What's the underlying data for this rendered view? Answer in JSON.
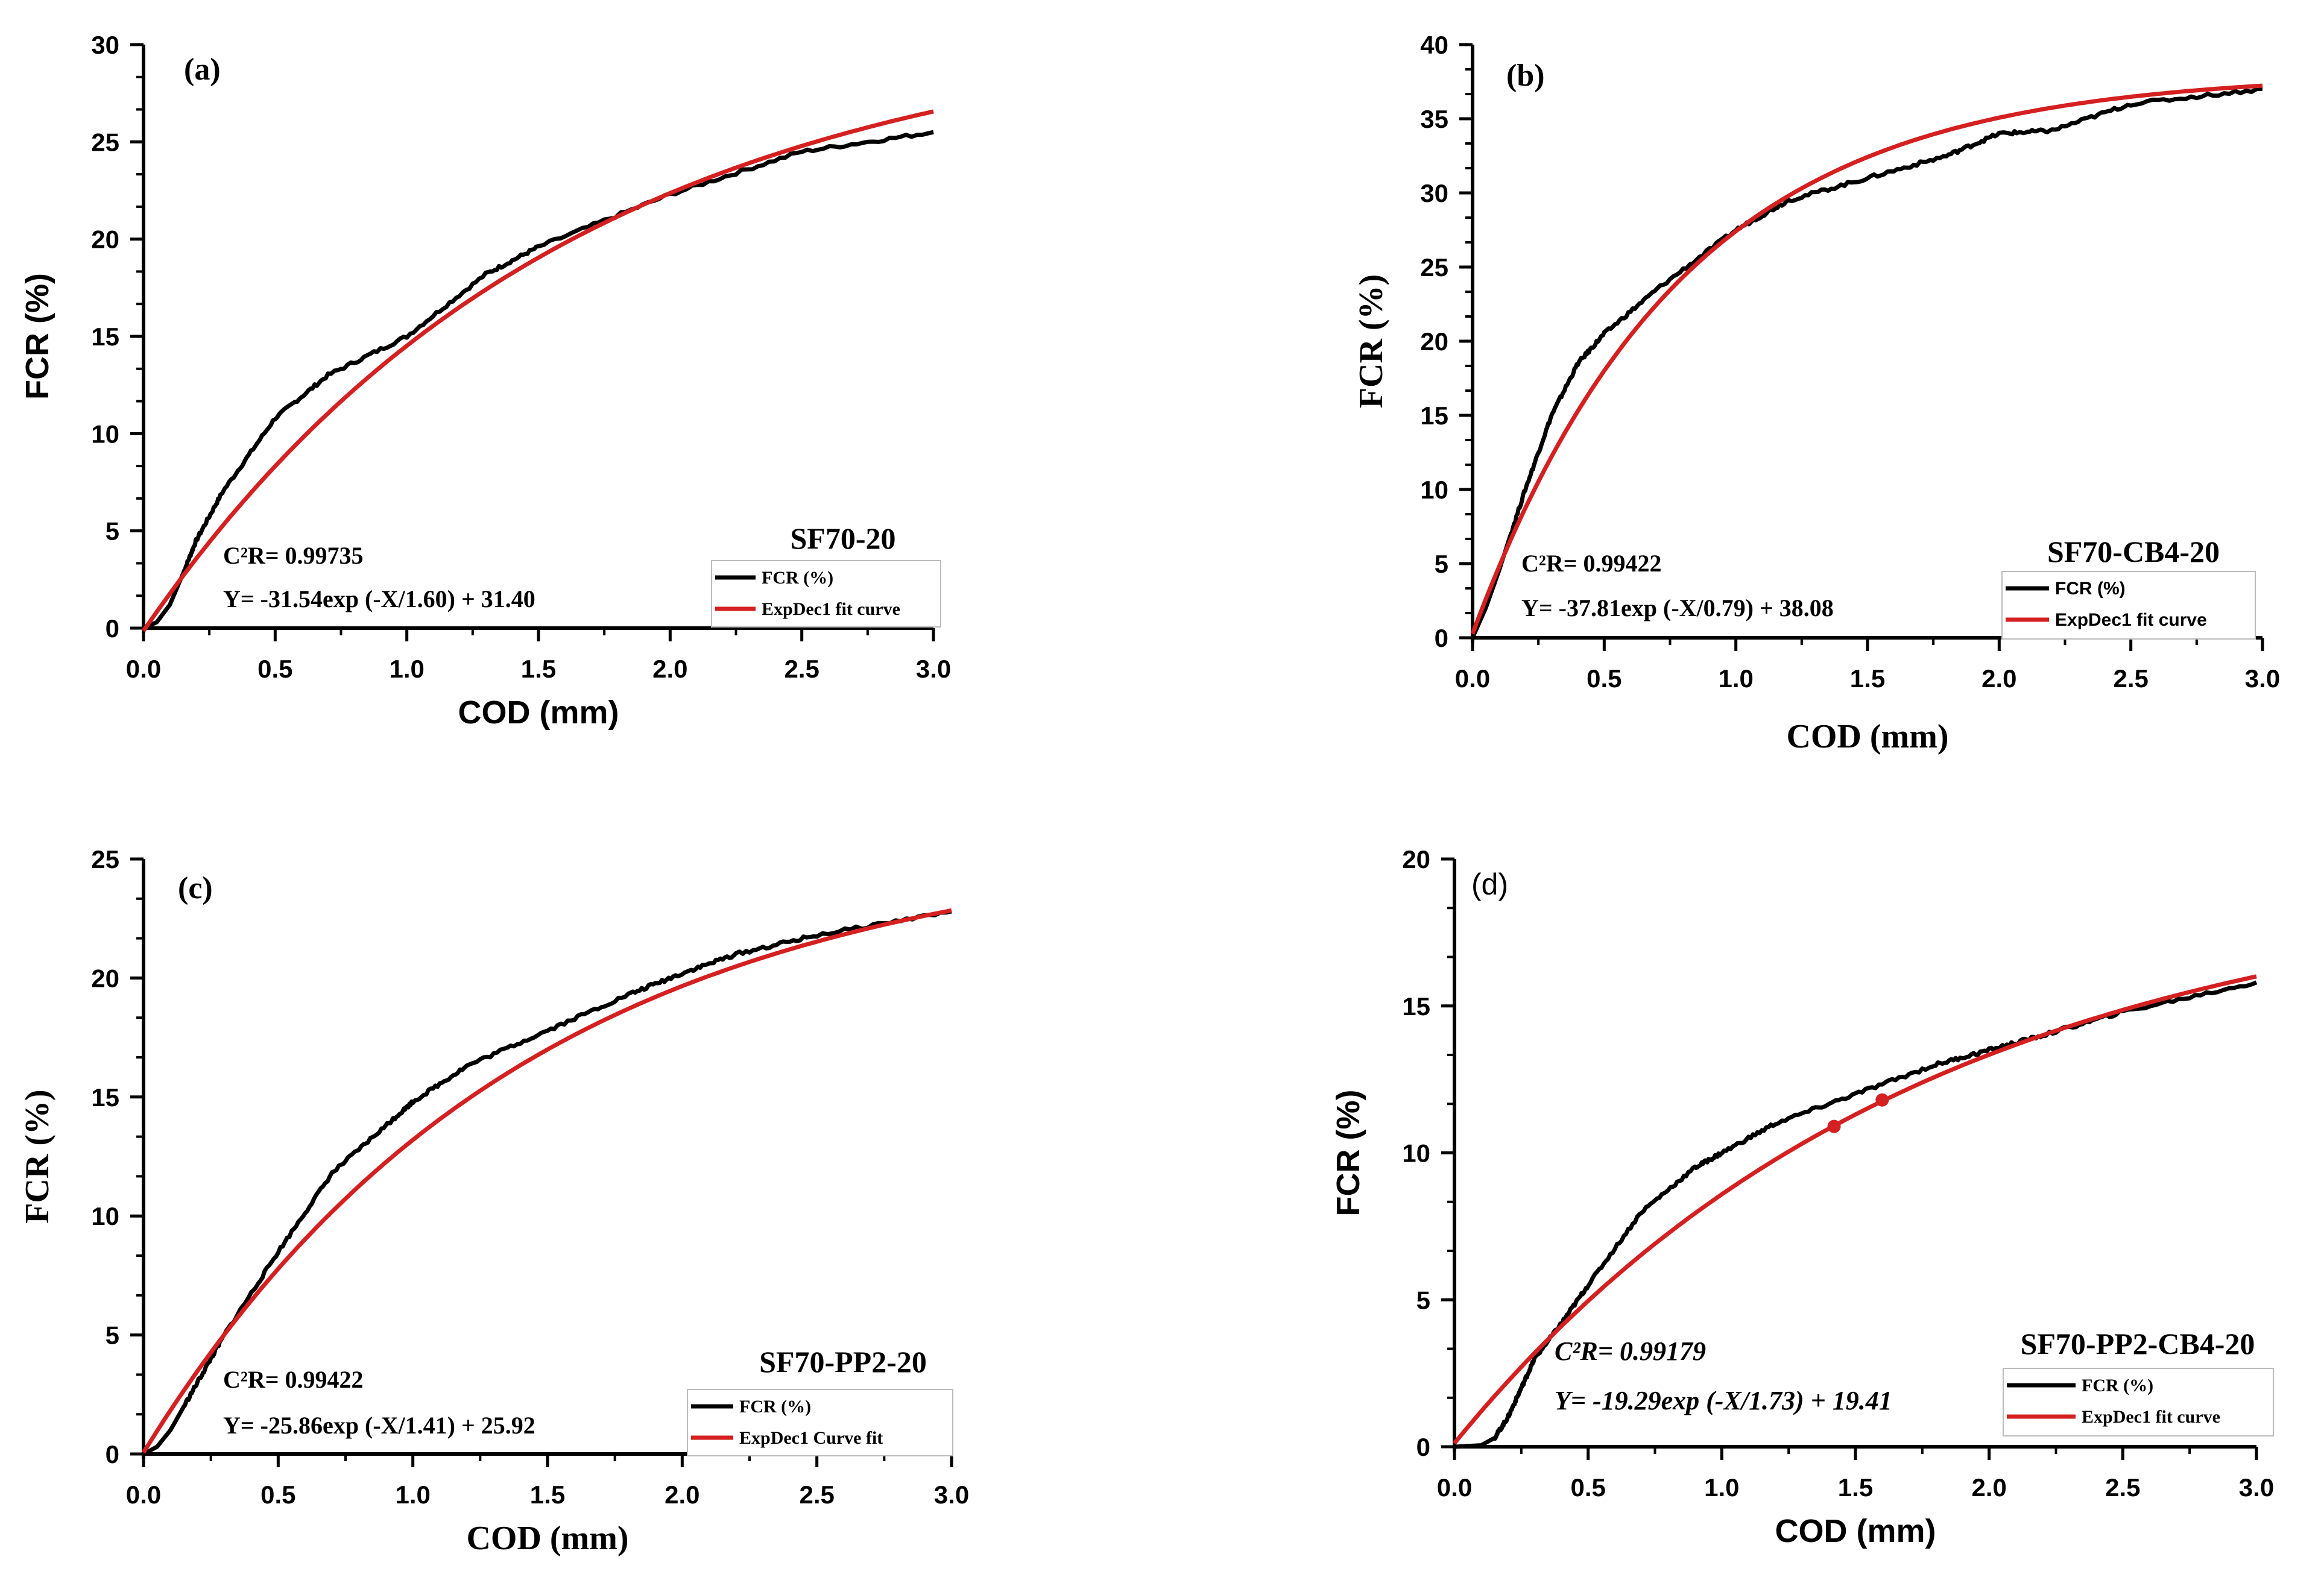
{
  "colors": {
    "measured": "#000000",
    "fit": "#d42020"
  },
  "chart_data": [
    {
      "type": "line",
      "panel": "(a)",
      "sample": "SF70-20",
      "xlabel": "COD (mm)",
      "ylabel": "FCR (%)",
      "xlim": [
        0,
        3.0
      ],
      "ylim": [
        0,
        30
      ],
      "x_ticks": [
        0.0,
        0.5,
        1.0,
        1.5,
        2.0,
        2.5,
        3.0
      ],
      "x_tick_labels": [
        "0.0",
        "0.5",
        "1.0",
        "1.5",
        "2.0",
        "2.5",
        "3.0"
      ],
      "y_ticks": [
        0,
        5,
        10,
        15,
        20,
        25,
        30
      ],
      "y_tick_labels": [
        "0",
        "5",
        "10",
        "15",
        "20",
        "25",
        "30"
      ],
      "r2_label": "C²R= 0.99735",
      "equation": "Y= -31.54exp (-X/1.60) + 31.40",
      "legend": [
        "FCR (%)",
        "ExpDec1 fit curve"
      ],
      "fit": {
        "A": -31.54,
        "t": 1.6,
        "y0": 31.4
      },
      "series": [
        {
          "name": "FCR (%)",
          "x": [
            0,
            0.05,
            0.1,
            0.15,
            0.2,
            0.3,
            0.5,
            0.7,
            1.0,
            1.3,
            1.5,
            2.0,
            2.5,
            3.0
          ],
          "y": [
            0,
            0.3,
            1.2,
            2.8,
            4.5,
            7.0,
            10.8,
            13.0,
            15.0,
            18.2,
            19.6,
            22.3,
            24.5,
            25.5
          ]
        },
        {
          "name": "ExpDec1 fit curve",
          "x": [
            0,
            0.25,
            0.5,
            0.75,
            1.0,
            1.5,
            2.0,
            2.5,
            3.0
          ],
          "y": [
            -0.14,
            4.42,
            8.3,
            11.62,
            14.44,
            19.02,
            22.41,
            24.84,
            26.61
          ]
        }
      ]
    },
    {
      "type": "line",
      "panel": "(b)",
      "sample": "SF70-CB4-20",
      "xlabel": "COD (mm)",
      "ylabel": "FCR (%)",
      "xlim": [
        0,
        3.0
      ],
      "ylim": [
        0,
        40
      ],
      "x_ticks": [
        0.0,
        0.5,
        1.0,
        1.5,
        2.0,
        2.5,
        3.0
      ],
      "x_tick_labels": [
        "0.0",
        "0.5",
        "1.0",
        "1.5",
        "2.0",
        "2.5",
        "3.0"
      ],
      "y_ticks": [
        0,
        5,
        10,
        15,
        20,
        25,
        30,
        35,
        40
      ],
      "y_tick_labels": [
        "0",
        "5",
        "10",
        "15",
        "20",
        "25",
        "30",
        "35",
        "40"
      ],
      "r2_label": "C²R= 0.99422",
      "equation": "Y= -37.81exp (-X/0.79) + 38.08",
      "legend": [
        "FCR (%)",
        "ExpDec1 fit curve"
      ],
      "fit": {
        "A": -37.81,
        "t": 0.79,
        "y0": 38.08
      },
      "series": [
        {
          "name": "FCR (%)",
          "x": [
            0,
            0.05,
            0.1,
            0.2,
            0.3,
            0.4,
            0.5,
            0.7,
            1.0,
            1.2,
            1.5,
            1.8,
            2.0,
            2.2,
            2.5,
            3.0
          ],
          "y": [
            0,
            2.0,
            4.5,
            10.0,
            15.0,
            18.5,
            20.5,
            23.5,
            27.5,
            29.5,
            31.0,
            32.5,
            34.0,
            34.2,
            36.0,
            37.0
          ]
        },
        {
          "name": "ExpDec1 fit curve",
          "x": [
            0,
            0.25,
            0.5,
            0.75,
            1.0,
            1.5,
            2.0,
            2.5,
            3.0
          ],
          "y": [
            0.27,
            10.57,
            18.07,
            23.54,
            27.53,
            32.75,
            35.52,
            36.92,
            37.22
          ]
        }
      ]
    },
    {
      "type": "line",
      "panel": "(c)",
      "sample": "SF70-PP2-20",
      "xlabel": "COD (mm)",
      "ylabel": "FCR (%)",
      "xlim": [
        0,
        3.0
      ],
      "ylim": [
        0,
        25
      ],
      "x_ticks": [
        0.0,
        0.5,
        1.0,
        1.5,
        2.0,
        2.5,
        3.0
      ],
      "x_tick_labels": [
        "0.0",
        "0.5",
        "1.0",
        "1.5",
        "2.0",
        "2.5",
        "3.0"
      ],
      "y_ticks": [
        0,
        5,
        10,
        15,
        20,
        25
      ],
      "y_tick_labels": [
        "0",
        "5",
        "10",
        "15",
        "20",
        "25"
      ],
      "r2_label": "C²R= 0.99422",
      "equation": "Y= -25.86exp (-X/1.41) + 25.92",
      "legend": [
        "FCR (%)",
        "ExpDec1 Curve fit"
      ],
      "fit": {
        "A": -25.86,
        "t": 1.41,
        "y0": 25.92
      },
      "series": [
        {
          "name": "FCR (%)",
          "x": [
            0,
            0.05,
            0.1,
            0.2,
            0.3,
            0.5,
            0.7,
            0.9,
            1.0,
            1.2,
            1.5,
            1.8,
            2.0,
            2.2,
            2.5,
            3.0
          ],
          "y": [
            0,
            0.3,
            1.0,
            3.0,
            5.0,
            8.5,
            11.8,
            13.8,
            14.8,
            16.3,
            17.8,
            19.3,
            20.2,
            21.0,
            21.8,
            22.8
          ]
        },
        {
          "name": "ExpDec1 Curve fit",
          "x": [
            0,
            0.25,
            0.5,
            0.75,
            1.0,
            1.5,
            2.0,
            2.5,
            3.0
          ],
          "y": [
            0.06,
            4.27,
            7.79,
            10.75,
            13.23,
            17.06,
            19.74,
            21.62,
            22.94
          ]
        }
      ]
    },
    {
      "type": "line",
      "panel": "(d)",
      "sample": "SF70-PP2-CB4-20",
      "xlabel": "COD (mm)",
      "ylabel": "FCR (%)",
      "xlim": [
        0,
        3.0
      ],
      "ylim": [
        0,
        20
      ],
      "x_ticks": [
        0.0,
        0.5,
        1.0,
        1.5,
        2.0,
        2.5,
        3.0
      ],
      "x_tick_labels": [
        "0.0",
        "0.5",
        "1.0",
        "1.5",
        "2.0",
        "2.5",
        "3.0"
      ],
      "y_ticks": [
        0,
        5,
        10,
        15,
        20
      ],
      "y_tick_labels": [
        "0",
        "5",
        "10",
        "15",
        "20"
      ],
      "r2_label": "C²R= 0.99179",
      "equation": "Y= -19.29exp (-X/1.73) + 19.41",
      "legend": [
        "FCR (%)",
        "ExpDec1 fit curve"
      ],
      "fit": {
        "A": -19.29,
        "t": 1.73,
        "y0": 19.41
      },
      "markers": [
        {
          "x": 1.42,
          "y": 10.9
        },
        {
          "x": 1.6,
          "y": 11.8
        }
      ],
      "series": [
        {
          "name": "FCR (%)",
          "x": [
            0,
            0.1,
            0.15,
            0.2,
            0.25,
            0.3,
            0.4,
            0.5,
            0.7,
            0.9,
            1.0,
            1.2,
            1.5,
            1.8,
            2.0,
            2.2,
            2.5,
            3.0
          ],
          "y": [
            0,
            0.05,
            0.3,
            1.0,
            2.0,
            3.0,
            4.2,
            5.5,
            8.0,
            9.5,
            10.0,
            11.0,
            12.0,
            13.0,
            13.5,
            14.0,
            14.8,
            15.8
          ]
        },
        {
          "name": "ExpDec1 fit curve",
          "x": [
            0,
            0.25,
            0.5,
            0.75,
            1.0,
            1.5,
            2.0,
            2.5,
            3.0
          ],
          "y": [
            0.12,
            2.72,
            4.97,
            6.92,
            8.61,
            11.34,
            13.4,
            14.95,
            16.12
          ]
        }
      ]
    }
  ]
}
